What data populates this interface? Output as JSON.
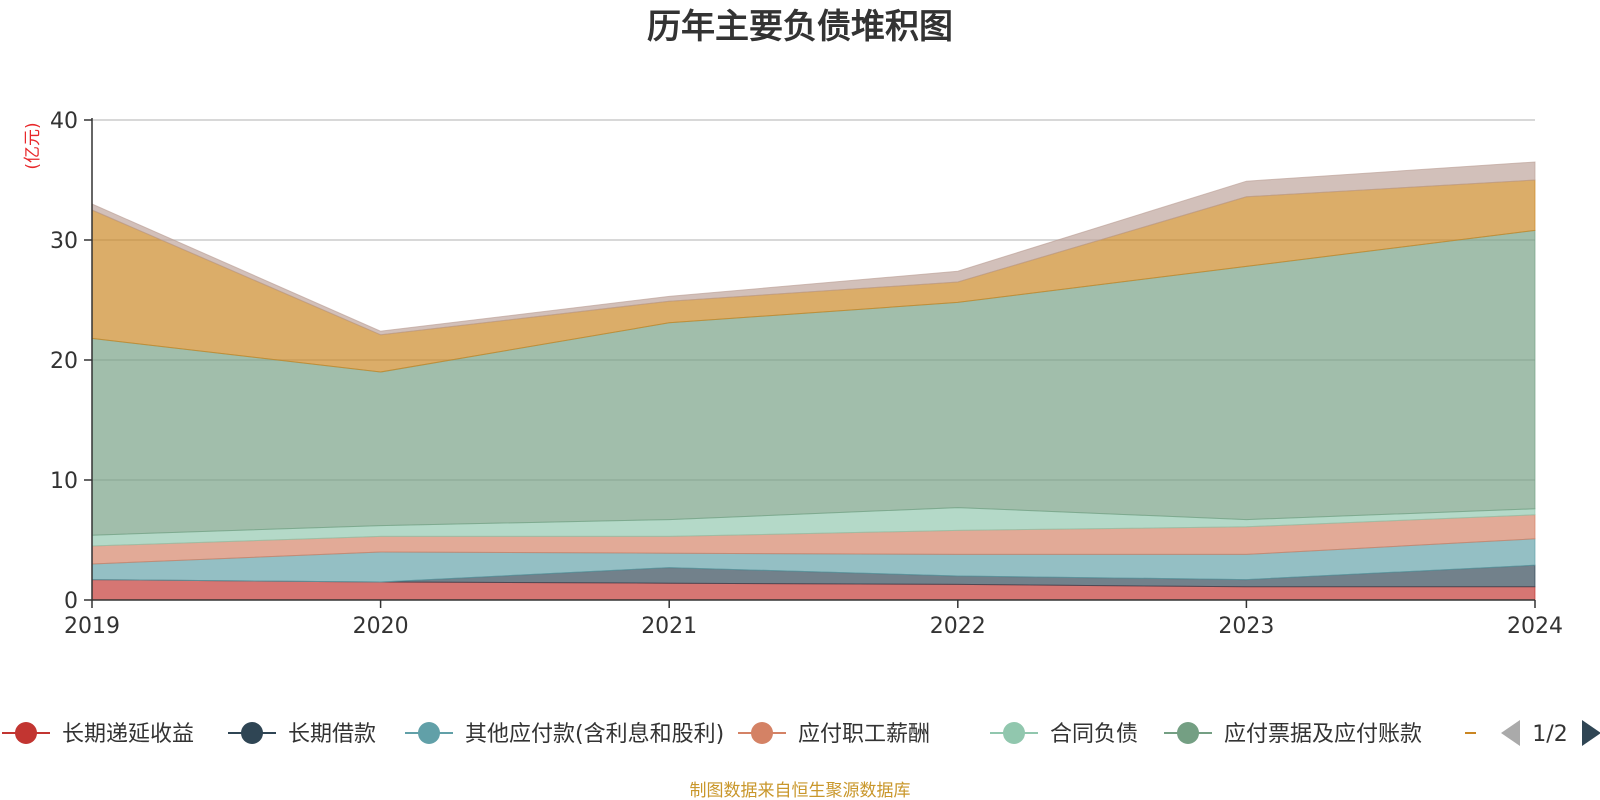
{
  "chart_data": {
    "type": "area",
    "stacked": true,
    "title": "历年主要负债堆积图",
    "unit_label": "(亿元)",
    "x": [
      "2019",
      "2020",
      "2021",
      "2022",
      "2023",
      "2024"
    ],
    "ylim": [
      0,
      40
    ],
    "yticks": [
      "0",
      "10",
      "20",
      "30",
      "40"
    ],
    "grid": true,
    "legend_position": "bottom",
    "series": [
      {
        "name": "长期递延收益",
        "color": "#c23531",
        "values": [
          1.7,
          1.5,
          1.4,
          1.3,
          1.1,
          1.1
        ]
      },
      {
        "name": "长期借款",
        "color": "#2f4554",
        "values": [
          0.0,
          0.0,
          1.3,
          0.7,
          0.6,
          1.8
        ]
      },
      {
        "name": "其他应付款(含利息和股利)",
        "color": "#61a0a8",
        "values": [
          1.3,
          2.5,
          1.2,
          1.8,
          2.1,
          2.2
        ]
      },
      {
        "name": "应付职工薪酬",
        "color": "#d48265",
        "values": [
          1.5,
          1.3,
          1.4,
          2.0,
          2.3,
          2.0
        ]
      },
      {
        "name": "合同负债",
        "color": "#91c7ae",
        "values": [
          0.9,
          0.9,
          1.4,
          1.9,
          0.6,
          0.5
        ]
      },
      {
        "name": "应付票据及应付账款",
        "color": "#749f83",
        "values": [
          16.4,
          12.8,
          16.4,
          17.1,
          21.1,
          23.2
        ]
      },
      {
        "name": "",
        "color": "#ca8622",
        "values": [
          10.7,
          3.1,
          1.8,
          1.7,
          5.8,
          4.2
        ]
      },
      {
        "name": "",
        "color": "#bda29a",
        "values": [
          0.5,
          0.3,
          0.4,
          0.9,
          1.3,
          1.5
        ]
      }
    ]
  },
  "legend": {
    "page_indicator": "1/2"
  },
  "footer": "制图数据来自恒生聚源数据库"
}
